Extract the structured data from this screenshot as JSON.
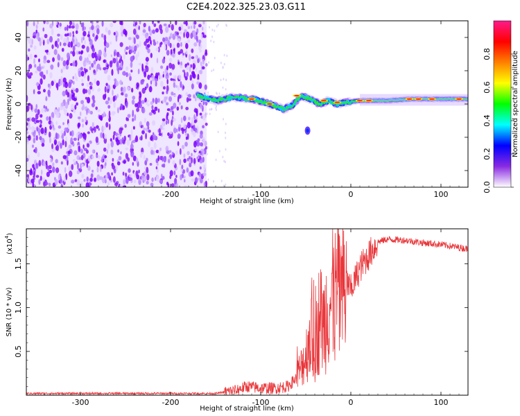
{
  "title": "C2E4.2022.325.23.03.G11",
  "chart_data": [
    {
      "type": "heatmap",
      "xlabel": "Height of straight line (km)",
      "ylabel": "Frequency (Hz)",
      "xlim": [
        -360,
        130
      ],
      "ylim": [
        -50,
        50
      ],
      "xticks": [
        -300,
        -200,
        -100,
        0,
        100
      ],
      "yticks": [
        -40,
        -20,
        0,
        20,
        40
      ],
      "noise_region_x": [
        -360,
        -160
      ],
      "ridge": {
        "x": [
          -170,
          -150,
          -130,
          -110,
          -95,
          -85,
          -75,
          -65,
          -55,
          -45,
          -35,
          -25,
          -15,
          -5,
          10,
          40,
          70,
          100,
          130
        ],
        "y": [
          5,
          2,
          4,
          3,
          1,
          -1,
          -3,
          -1,
          5,
          3,
          0,
          2,
          0,
          1,
          2,
          2,
          3,
          3,
          3
        ]
      },
      "blob": {
        "x": -48,
        "y": -16
      },
      "colorbar": {
        "label": "Normalized spectral amplitude",
        "range": [
          0,
          1
        ],
        "ticks": [
          "0.0",
          "0.2",
          "0.4",
          "0.6",
          "0.8"
        ],
        "colors": [
          "#ffffff",
          "#8a2be2",
          "#0000ff",
          "#00ffff",
          "#00ff00",
          "#ffff00",
          "#ff8000",
          "#ff0000",
          "#ff1a8c"
        ]
      }
    },
    {
      "type": "line",
      "xlabel": "Height of straight line (km)",
      "ylabel": "SNR (10 * v/v)",
      "yscale_label": "(x10",
      "yscale_exp": "4",
      "yscale_close": ")",
      "xlim": [
        -360,
        130
      ],
      "ylim": [
        0,
        1.9
      ],
      "xticks": [
        -300,
        -200,
        -100,
        0,
        100
      ],
      "yticks": [
        0.5,
        1.0,
        1.5
      ],
      "ytick_labels": [
        "0.5",
        "1.0",
        "1.5"
      ],
      "series": [
        {
          "color": "#e8363a",
          "x": [
            -360,
            -300,
            -200,
            -150,
            -130,
            -115,
            -100,
            -85,
            -70,
            -60,
            -50,
            -45,
            -40,
            -35,
            -30,
            -25,
            -20,
            -15,
            -10,
            -5,
            0,
            10,
            20,
            30,
            40,
            60,
            80,
            100,
            130
          ],
          "y": [
            0.02,
            0.02,
            0.02,
            0.02,
            0.05,
            0.1,
            0.08,
            0.08,
            0.1,
            0.2,
            0.45,
            0.7,
            0.5,
            0.9,
            0.8,
            1.1,
            1.0,
            1.2,
            1.15,
            1.3,
            1.2,
            1.45,
            1.6,
            1.75,
            1.78,
            1.77,
            1.74,
            1.72,
            1.67
          ]
        }
      ]
    }
  ]
}
